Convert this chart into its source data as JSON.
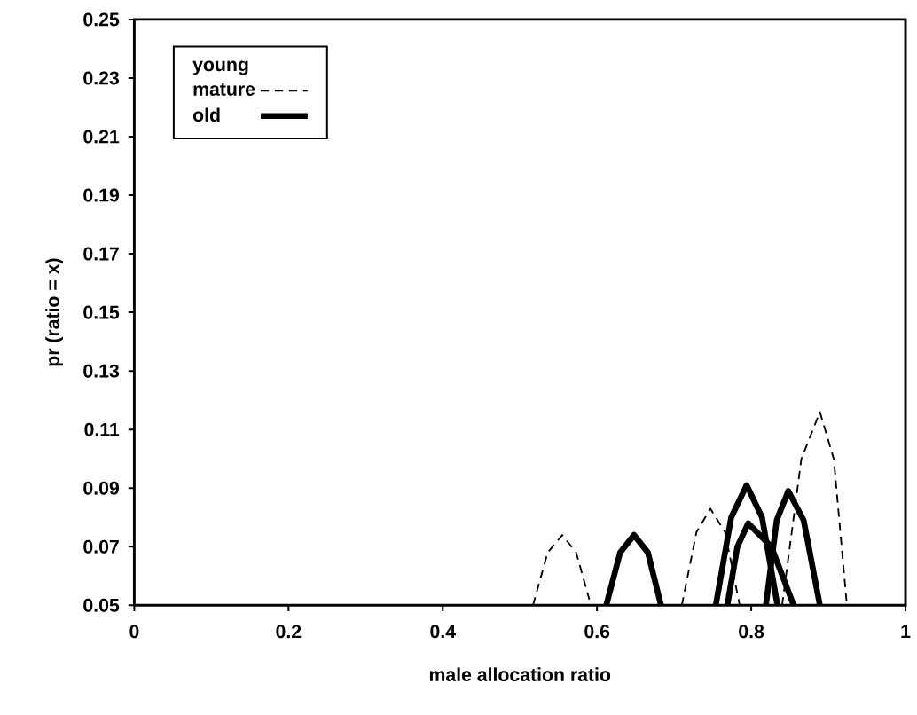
{
  "chart_data": {
    "type": "line",
    "xlabel": "male allocation ratio",
    "ylabel": "pr (ratio = x)",
    "xlim": [
      0,
      1
    ],
    "ylim": [
      0.05,
      0.25
    ],
    "xticks": [
      0,
      0.2,
      0.4,
      0.6,
      0.8,
      1
    ],
    "yticks": [
      0.05,
      0.07,
      0.09,
      0.11,
      0.13,
      0.15,
      0.17,
      0.19,
      0.21,
      0.23,
      0.25
    ],
    "legend": "top left",
    "grid": false,
    "marker": "none",
    "series": [
      {
        "name": "young",
        "line_style": "none"
      },
      {
        "name": "mature",
        "line_style": "dashed",
        "color": "#000000",
        "x": [
          0.517,
          0.536,
          0.555,
          0.573,
          0.59
        ],
        "values": [
          0.05,
          0.068,
          0.074,
          0.068,
          0.052
        ]
      },
      {
        "line_style": "dashed",
        "color": "#000000",
        "x": [
          0.71,
          0.729,
          0.747,
          0.766,
          0.785
        ],
        "values": [
          0.05,
          0.075,
          0.083,
          0.075,
          0.05
        ]
      },
      {
        "line_style": "dashed",
        "color": "#000000",
        "x": [
          0.84,
          0.865,
          0.889,
          0.907,
          0.924
        ],
        "values": [
          0.05,
          0.1,
          0.116,
          0.1,
          0.05
        ]
      },
      {
        "name": "old",
        "line_style": "solid",
        "color": "#000000",
        "x": [
          0.612,
          0.63,
          0.648,
          0.666,
          0.683
        ],
        "values": [
          0.05,
          0.068,
          0.074,
          0.068,
          0.05
        ]
      },
      {
        "line_style": "solid",
        "color": "#000000",
        "x": [
          0.754,
          0.774,
          0.794,
          0.814,
          0.834
        ],
        "values": [
          0.05,
          0.08,
          0.091,
          0.08,
          0.05
        ]
      },
      {
        "line_style": "solid",
        "color": "#000000",
        "x": [
          0.769,
          0.782,
          0.796,
          0.826,
          0.855
        ],
        "values": [
          0.05,
          0.07,
          0.078,
          0.07,
          0.05
        ]
      },
      {
        "line_style": "solid",
        "color": "#000000",
        "x": [
          0.819,
          0.833,
          0.848,
          0.868,
          0.889
        ],
        "values": [
          0.05,
          0.079,
          0.089,
          0.079,
          0.05
        ]
      }
    ]
  }
}
